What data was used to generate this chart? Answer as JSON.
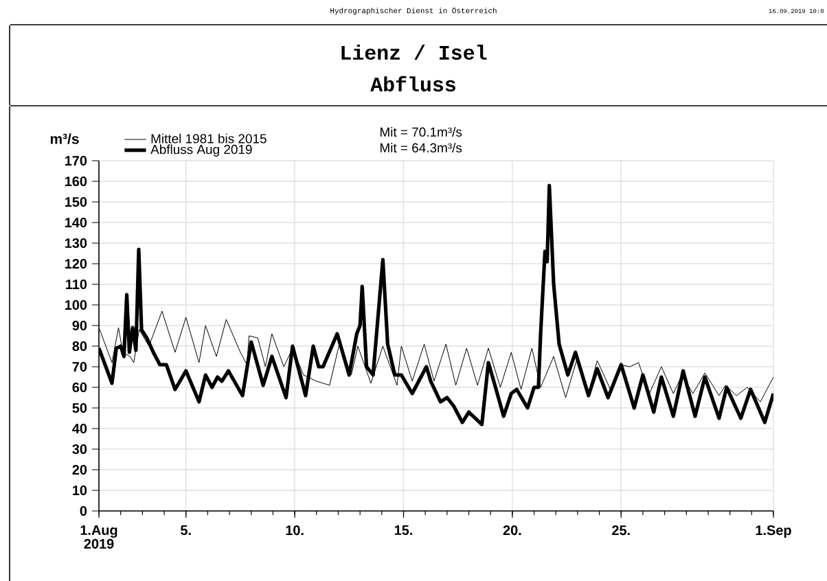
{
  "chart_data": {
    "type": "line",
    "title": "Lienz / Isel",
    "subtitle": "Abfluss",
    "ylabel": "m³/s",
    "annotations": [
      "Hydrographischer Dienst in Österreich",
      "16.09.2019 10:0",
      "Mit =  70.1m³/s",
      "Mit =  64.3m³/s"
    ],
    "xlim": [
      1,
      32
    ],
    "ylim": [
      0,
      170
    ],
    "xticks": [
      {
        "value": 1,
        "label": "1.Aug 2019"
      },
      {
        "value": 5,
        "label": "5."
      },
      {
        "value": 10,
        "label": "10."
      },
      {
        "value": 15,
        "label": "15."
      },
      {
        "value": 20,
        "label": "20."
      },
      {
        "value": 25,
        "label": "25."
      },
      {
        "value": 32,
        "label": "1.Sep"
      }
    ],
    "yticks": [
      0,
      10,
      20,
      30,
      40,
      50,
      60,
      70,
      80,
      90,
      100,
      110,
      120,
      130,
      140,
      150,
      160,
      170
    ],
    "grid": true,
    "legend": "top left",
    "marker": "none",
    "series": [
      {
        "name": "Mittel 1981 bis 2015",
        "color": "#000000",
        "x": [
          1,
          1.6,
          1.9,
          2.1,
          2.43,
          2.6,
          2.85,
          3.3,
          3.9,
          4.5,
          5,
          5.6,
          5.9,
          6.4,
          6.85,
          7.5,
          7.8,
          7.9,
          8.3,
          8.65,
          8.95,
          9.5,
          9.9,
          10.4,
          11.0,
          11.6,
          12.05,
          12.6,
          12.9,
          13.5,
          14.05,
          14.7,
          14.9,
          15.4,
          15.95,
          16.4,
          16.95,
          17.4,
          17.9,
          18.4,
          18.9,
          19.45,
          19.95,
          20.4,
          20.9,
          21.3,
          21.9,
          22.45,
          22.95,
          23.5,
          23.9,
          24.55,
          24.95,
          25.4,
          25.8,
          26.3,
          26.85,
          27.4,
          27.8,
          28.3,
          28.85,
          29.5,
          29.8,
          30.3,
          30.8,
          31.4,
          32
        ],
        "values": [
          89,
          72,
          89,
          77,
          75,
          72,
          88,
          80,
          97,
          77,
          94,
          72,
          90,
          75,
          93,
          77,
          71,
          85,
          84,
          70,
          86,
          70,
          79,
          66,
          63,
          61,
          81,
          66,
          80,
          62,
          80,
          61,
          80,
          63,
          81,
          63,
          81,
          61,
          79,
          61,
          79,
          60,
          77,
          59,
          79,
          60,
          75,
          55,
          73,
          57,
          73,
          58,
          71,
          70,
          72,
          57,
          70,
          57,
          66,
          57,
          67,
          56,
          61,
          56,
          60,
          53,
          65
        ]
      },
      {
        "name": "Abfluss Aug 2019",
        "color": "#000000",
        "x": [
          1,
          1.6,
          1.8,
          2.0,
          2.15,
          2.28,
          2.4,
          2.55,
          2.7,
          2.83,
          2.96,
          3.2,
          3.5,
          3.8,
          4.1,
          4.5,
          5.0,
          5.6,
          5.9,
          6.2,
          6.45,
          6.65,
          6.95,
          7.6,
          8.0,
          8.55,
          8.95,
          9.6,
          9.9,
          10.5,
          10.85,
          11.1,
          11.3,
          11.95,
          12.5,
          12.85,
          13.0,
          13.1,
          13.3,
          13.6,
          14.05,
          14.27,
          14.6,
          14.9,
          15.4,
          16.05,
          16.25,
          16.7,
          17.0,
          17.3,
          17.7,
          18.0,
          18.6,
          18.9,
          19.2,
          19.6,
          19.95,
          20.2,
          20.7,
          21.0,
          21.2,
          21.3,
          21.5,
          21.6,
          21.7,
          21.9,
          22.15,
          22.55,
          22.9,
          23.5,
          23.9,
          24.4,
          25.0,
          25.6,
          26.0,
          26.5,
          26.85,
          27.4,
          27.85,
          28.4,
          28.85,
          29.5,
          29.85,
          30.5,
          30.95,
          31.6,
          32
        ],
        "values": [
          79,
          62,
          79,
          80,
          75,
          105,
          77,
          89,
          78,
          127,
          88,
          84,
          77,
          71,
          71,
          59,
          68,
          53,
          66,
          60,
          65,
          63,
          68,
          56,
          82,
          61,
          75,
          55,
          80,
          56,
          80,
          70,
          70,
          86,
          66,
          86,
          90,
          109,
          70,
          66,
          122,
          81,
          66,
          66,
          57,
          70,
          63,
          53,
          55,
          51,
          43,
          48,
          42,
          72,
          61,
          46,
          57,
          59,
          50,
          60,
          60,
          86,
          126,
          121,
          158,
          110,
          81,
          66,
          77,
          56,
          69,
          55,
          71,
          50,
          66,
          48,
          65,
          46,
          68,
          46,
          65,
          45,
          60,
          45,
          59,
          43,
          57
        ]
      }
    ]
  }
}
